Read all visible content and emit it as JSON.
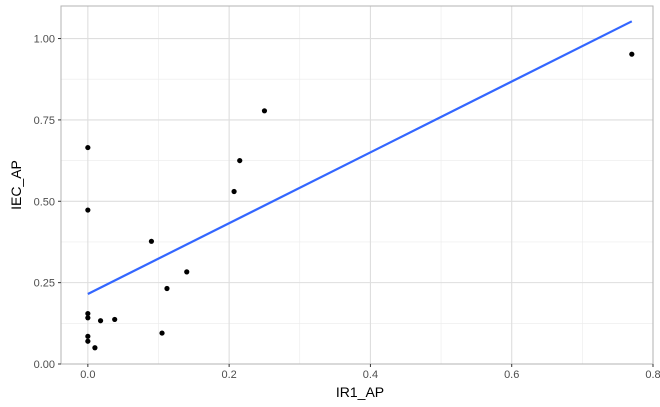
{
  "chart_data": {
    "type": "scatter",
    "title": "",
    "xlabel": "IR1_AP",
    "ylabel": "IEC_AP",
    "xlim": [
      -0.038,
      0.8
    ],
    "ylim": [
      0,
      1.1
    ],
    "x_ticks": [
      "0.0",
      "0.2",
      "0.4",
      "0.6",
      "0.8"
    ],
    "y_ticks": [
      "0.00",
      "0.25",
      "0.50",
      "0.75",
      "1.00"
    ],
    "grid": true,
    "points": [
      {
        "x": 0.0,
        "y": 0.665
      },
      {
        "x": 0.0,
        "y": 0.473
      },
      {
        "x": 0.0,
        "y": 0.155
      },
      {
        "x": 0.0,
        "y": 0.142
      },
      {
        "x": 0.0,
        "y": 0.085
      },
      {
        "x": 0.0,
        "y": 0.07
      },
      {
        "x": 0.01,
        "y": 0.05
      },
      {
        "x": 0.018,
        "y": 0.133
      },
      {
        "x": 0.038,
        "y": 0.137
      },
      {
        "x": 0.09,
        "y": 0.377
      },
      {
        "x": 0.105,
        "y": 0.095
      },
      {
        "x": 0.112,
        "y": 0.232
      },
      {
        "x": 0.14,
        "y": 0.283
      },
      {
        "x": 0.207,
        "y": 0.53
      },
      {
        "x": 0.215,
        "y": 0.625
      },
      {
        "x": 0.25,
        "y": 0.778
      },
      {
        "x": 0.77,
        "y": 0.952
      }
    ],
    "fit_line": {
      "x": [
        0.0,
        0.77
      ],
      "y": [
        0.215,
        1.053
      ]
    },
    "colors": {
      "points": "#000000",
      "fit_line": "#3366ff",
      "grid": "#ebebeb",
      "panel_border": "#b3b3b3"
    }
  }
}
